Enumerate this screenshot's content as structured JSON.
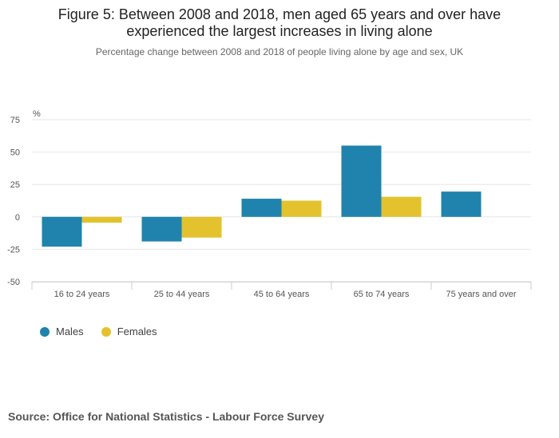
{
  "chart_data": {
    "type": "bar",
    "title_lines": [
      "Figure 5: Between 2008 and 2018, men aged 65 years and over have",
      "experienced the largest increases in living alone"
    ],
    "subtitle": "Percentage change between 2008 and 2018 of people living alone by age and sex, UK",
    "ylabel": "%",
    "xlabel": "",
    "ylim": [
      -50,
      75
    ],
    "yticks": [
      -50,
      -25,
      0,
      25,
      50,
      75
    ],
    "grid": true,
    "legend_position": "bottom-left",
    "categories": [
      "16 to 24 years",
      "25 to 44 years",
      "45 to 64 years",
      "65 to 74 years",
      "75 years and over"
    ],
    "series": [
      {
        "name": "Males",
        "color": "#1f83ad",
        "values": [
          -23,
          -19,
          14,
          55,
          19.5
        ]
      },
      {
        "name": "Females",
        "color": "#e3c22d",
        "values": [
          -4.5,
          -16,
          12.5,
          15.5,
          null
        ]
      }
    ]
  },
  "source": "Source: Office for National Statistics - Labour Force Survey"
}
